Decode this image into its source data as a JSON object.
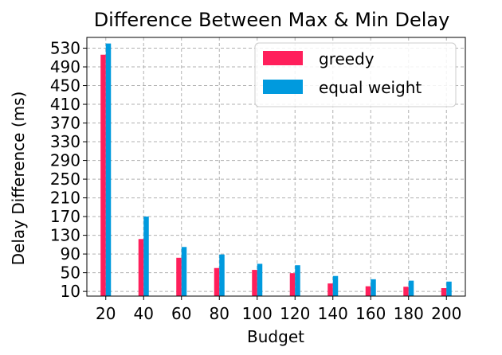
{
  "chart_data": {
    "type": "bar",
    "title": "Difference Between Max & Min Delay",
    "xlabel": "Budget",
    "ylabel": "Delay Difference (ms)",
    "categories": [
      "20",
      "40",
      "60",
      "80",
      "100",
      "120",
      "140",
      "160",
      "180",
      "200"
    ],
    "series": [
      {
        "name": "greedy",
        "color": "#ff1f5b",
        "values": [
          516,
          122,
          82,
          60,
          56,
          49,
          27,
          21,
          20,
          17
        ]
      },
      {
        "name": "equal weight",
        "color": "#009ade",
        "values": [
          540,
          170,
          105,
          89,
          69,
          66,
          43,
          36,
          33,
          31
        ]
      }
    ],
    "yticks": [
      10,
      50,
      90,
      130,
      170,
      210,
      250,
      290,
      330,
      370,
      410,
      450,
      490,
      530
    ],
    "ylim": [
      0,
      553
    ],
    "grid": true,
    "legend_position": "top-right"
  }
}
